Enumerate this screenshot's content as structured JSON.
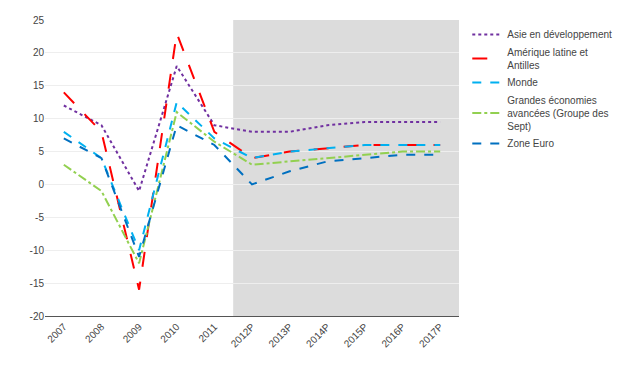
{
  "chart_data": {
    "type": "line",
    "categories": [
      "2007",
      "2008",
      "2009",
      "2010",
      "2011",
      "2012P",
      "2013P",
      "2014P",
      "2015P",
      "2016P",
      "2017P"
    ],
    "series": [
      {
        "name": "Asie en développement",
        "color": "#7030A0",
        "line_style": "dot",
        "values": [
          12,
          9,
          -1,
          18,
          9,
          8,
          8,
          9,
          9.5,
          9.5,
          9.5
        ]
      },
      {
        "name": "Amérique latine et\nAntilles",
        "color": "#FF0000",
        "line_style": "longdash",
        "values": [
          14,
          8,
          -16,
          23,
          8,
          4,
          5,
          5.5,
          6,
          6,
          6
        ]
      },
      {
        "name": "Monde",
        "color": "#00B0F0",
        "line_style": "dash",
        "values": [
          8,
          4,
          -10,
          12.5,
          7,
          4,
          5,
          5.5,
          6,
          6,
          6
        ]
      },
      {
        "name": "Grandes économies\navancées (Groupe des\nSept)",
        "color": "#92D050",
        "line_style": "dashdot",
        "values": [
          3,
          -1,
          -12,
          11,
          6.5,
          3,
          3.5,
          4,
          4.5,
          5,
          5
        ]
      },
      {
        "name": "Zone Euro",
        "color": "#0070C0",
        "line_style": "dash",
        "values": [
          7,
          4,
          -11,
          9,
          6,
          0,
          2,
          3.5,
          4,
          4.5,
          4.5
        ]
      }
    ],
    "ylim": [
      -20,
      25
    ],
    "yticks": [
      -20,
      -15,
      -10,
      -5,
      0,
      5,
      10,
      15,
      20,
      25
    ],
    "grid": true,
    "legend": "right"
  }
}
